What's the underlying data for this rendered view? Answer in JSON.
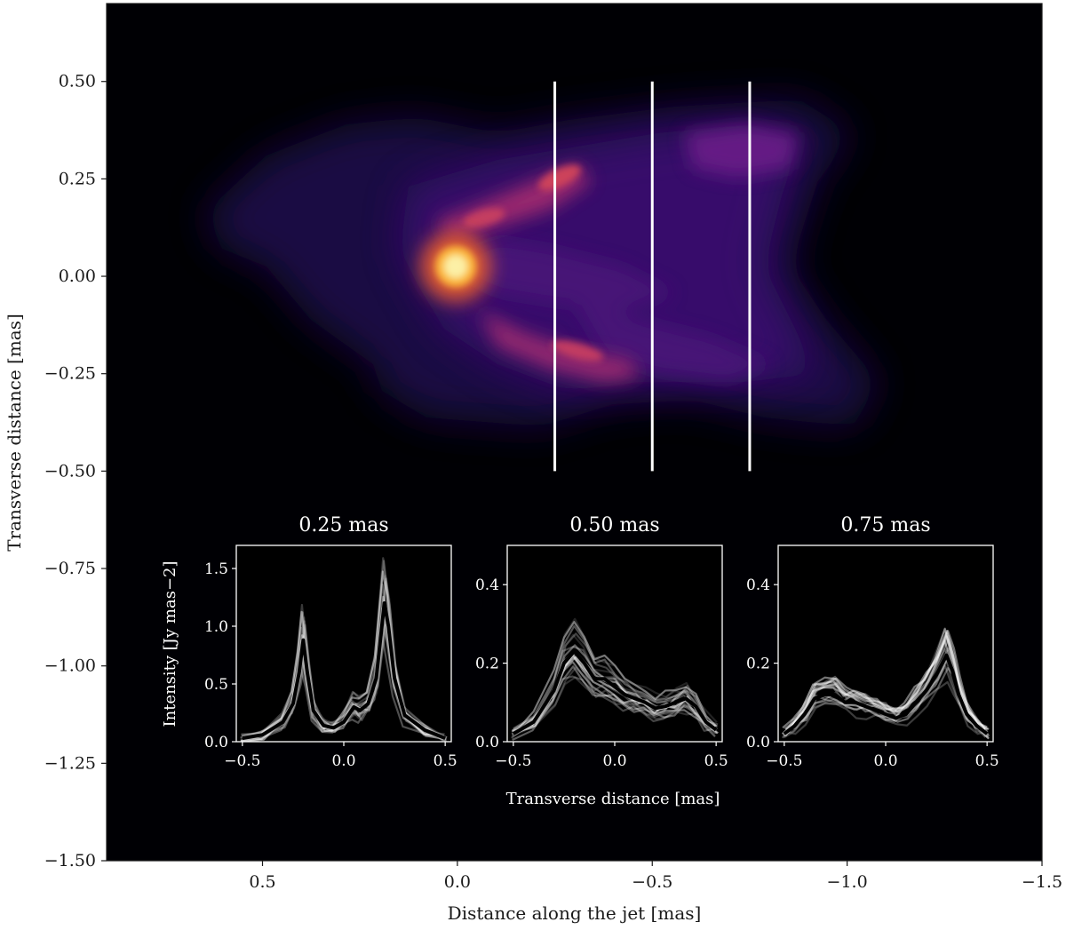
{
  "chart_data": [
    {
      "type": "heatmap",
      "name": "main-image",
      "colormap": "inferno",
      "background_color": "#000004",
      "xlabel": "Distance along the jet [mas]",
      "ylabel": "Transverse distance [mas]",
      "xlim": [
        0.9,
        -1.5
      ],
      "ylim": [
        -1.5,
        0.7
      ],
      "xticks": [
        0.5,
        0.0,
        -0.5,
        -1.0,
        -1.5
      ],
      "xtick_labels": [
        "0.5",
        "0.0",
        "−0.5",
        "−1.0",
        "−1.5"
      ],
      "yticks": [
        0.5,
        0.25,
        0.0,
        -0.25,
        -0.5,
        -0.75,
        -1.0,
        -1.25,
        -1.5
      ],
      "ytick_labels": [
        "0.50",
        "0.25",
        "0.00",
        "−0.25",
        "−0.50",
        "−0.75",
        "−1.00",
        "−1.25",
        "−1.50"
      ],
      "core": {
        "x": -0.01,
        "y": 0.02
      },
      "cut_lines": [
        {
          "x": -0.25,
          "y_range": [
            -0.5,
            0.5
          ],
          "color": "#ffffff"
        },
        {
          "x": -0.5,
          "y_range": [
            -0.5,
            0.5
          ],
          "color": "#ffffff"
        },
        {
          "x": -0.75,
          "y_range": [
            -0.5,
            0.5
          ],
          "color": "#ffffff"
        }
      ]
    },
    {
      "type": "line",
      "name": "inset-0.25",
      "title": "0.25 mas",
      "xlim": [
        -0.53,
        0.53
      ],
      "ylim": [
        0,
        1.7
      ],
      "xticks": [
        -0.5,
        0.0,
        0.5
      ],
      "xtick_labels": [
        "−0.5",
        "0.0",
        "0.5"
      ],
      "yticks": [
        0.0,
        0.5,
        1.0,
        1.5
      ],
      "ytick_labels": [
        "0.0",
        "0.5",
        "1.0",
        "1.5"
      ],
      "ylabel": "Intensity [Jy mas−2]",
      "x": [
        -0.5,
        -0.4,
        -0.3,
        -0.25,
        -0.22,
        -0.2,
        -0.18,
        -0.15,
        -0.1,
        -0.05,
        0.0,
        0.05,
        0.08,
        0.12,
        0.16,
        0.2,
        0.22,
        0.25,
        0.3,
        0.4,
        0.5
      ],
      "mean": [
        0.03,
        0.06,
        0.17,
        0.33,
        0.6,
        0.88,
        0.6,
        0.27,
        0.14,
        0.12,
        0.17,
        0.3,
        0.27,
        0.33,
        0.55,
        1.2,
        1.0,
        0.55,
        0.23,
        0.1,
        0.03
      ]
    },
    {
      "type": "line",
      "name": "inset-0.50",
      "title": "0.50 mas",
      "xlim": [
        -0.53,
        0.53
      ],
      "ylim": [
        0,
        0.5
      ],
      "xticks": [
        -0.5,
        0.0,
        0.5
      ],
      "xtick_labels": [
        "−0.5",
        "0.0",
        "0.5"
      ],
      "yticks": [
        0.0,
        0.2,
        0.4
      ],
      "ytick_labels": [
        "0.0",
        "0.2",
        "0.4"
      ],
      "xlabel": "Transverse distance [mas]",
      "x": [
        -0.5,
        -0.4,
        -0.3,
        -0.25,
        -0.2,
        -0.15,
        -0.1,
        -0.05,
        0.0,
        0.05,
        0.1,
        0.15,
        0.2,
        0.25,
        0.3,
        0.35,
        0.4,
        0.45,
        0.5
      ],
      "mean": [
        0.02,
        0.05,
        0.13,
        0.2,
        0.23,
        0.2,
        0.16,
        0.16,
        0.14,
        0.12,
        0.11,
        0.1,
        0.085,
        0.09,
        0.1,
        0.11,
        0.09,
        0.05,
        0.03
      ]
    },
    {
      "type": "line",
      "name": "inset-0.75",
      "title": "0.75 mas",
      "xlim": [
        -0.53,
        0.53
      ],
      "ylim": [
        0,
        0.5
      ],
      "xticks": [
        -0.5,
        0.0,
        0.5
      ],
      "xtick_labels": [
        "−0.5",
        "0.0",
        "0.5"
      ],
      "yticks": [
        0.0,
        0.2,
        0.4
      ],
      "ytick_labels": [
        "0.0",
        "0.2",
        "0.4"
      ],
      "x": [
        -0.5,
        -0.45,
        -0.4,
        -0.35,
        -0.3,
        -0.25,
        -0.2,
        -0.15,
        -0.1,
        -0.05,
        0.0,
        0.05,
        0.1,
        0.15,
        0.2,
        0.25,
        0.3,
        0.33,
        0.36,
        0.4,
        0.45,
        0.5
      ],
      "mean": [
        0.02,
        0.04,
        0.07,
        0.11,
        0.12,
        0.12,
        0.1,
        0.1,
        0.09,
        0.08,
        0.07,
        0.06,
        0.07,
        0.1,
        0.13,
        0.17,
        0.22,
        0.18,
        0.12,
        0.07,
        0.04,
        0.02
      ]
    }
  ]
}
